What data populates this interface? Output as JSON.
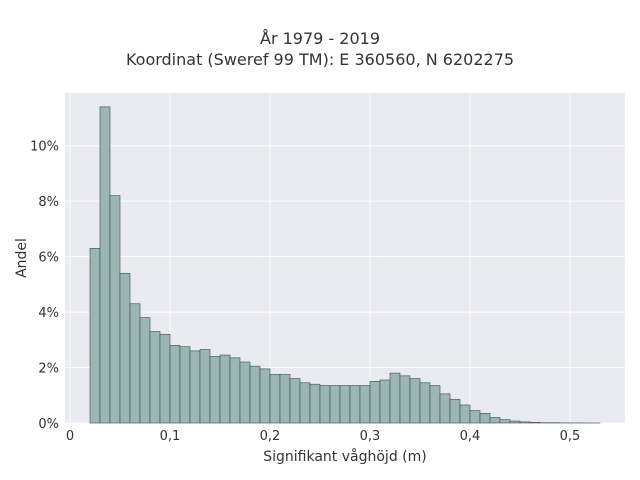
{
  "chart_data": {
    "type": "histogram",
    "title_line1": "År 1979 - 2019",
    "title_line2": "Koordinat (Sweref 99 TM): E 360560, N 6202275",
    "xlabel": "Signifikant våghöjd (m)",
    "ylabel": "Andel",
    "xlim": [
      -0.005,
      0.555
    ],
    "ylim": [
      0,
      0.119
    ],
    "xticks": [
      0,
      0.1,
      0.2,
      0.3,
      0.4,
      0.5
    ],
    "xtick_labels": [
      "0",
      "0,1",
      "0,2",
      "0,3",
      "0,4",
      "0,5"
    ],
    "yticks": [
      0,
      0.02,
      0.04,
      0.06,
      0.08,
      0.1
    ],
    "ytick_labels": [
      "0%",
      "2%",
      "4%",
      "6%",
      "8%",
      "10%"
    ],
    "grid": true,
    "bin_start": 0.02,
    "bin_width": 0.01,
    "values": [
      0.063,
      0.114,
      0.082,
      0.054,
      0.043,
      0.038,
      0.033,
      0.032,
      0.028,
      0.0275,
      0.026,
      0.0265,
      0.024,
      0.0245,
      0.0235,
      0.022,
      0.0205,
      0.0195,
      0.0175,
      0.0175,
      0.016,
      0.0145,
      0.014,
      0.0135,
      0.0135,
      0.0135,
      0.0135,
      0.0135,
      0.015,
      0.0155,
      0.018,
      0.017,
      0.016,
      0.0145,
      0.0135,
      0.0105,
      0.0085,
      0.0065,
      0.0045,
      0.0035,
      0.002,
      0.0012,
      0.0007,
      0.0004,
      0.0002,
      0.0001,
      0.0001,
      5e-05,
      3e-05,
      2e-05,
      1e-05
    ]
  },
  "colors": {
    "plot_bg": "#eaeaf2",
    "bar_fill": "#9cb6b6",
    "bar_edge": "#3a4a4a",
    "grid": "#ffffff"
  }
}
